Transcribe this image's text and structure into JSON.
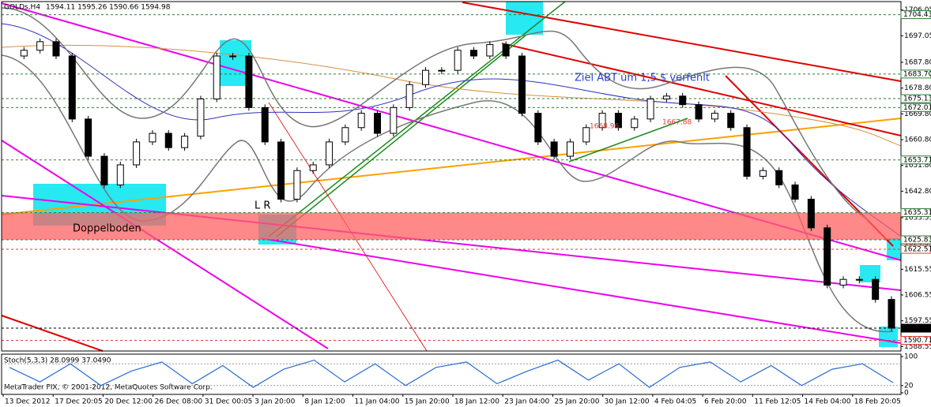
{
  "chart_data": {
    "type": "candlestick",
    "title": "GOLDs,H4",
    "ohlc_text": "1594.11 1595.26 1590.66 1594.98",
    "closes": [
      1690,
      1692,
      1695,
      1690,
      1668,
      1655,
      1645,
      1652,
      1660,
      1663,
      1658,
      1662,
      1675,
      1690,
      1690,
      1672,
      1660,
      1640,
      1650,
      1652,
      1660,
      1665,
      1670,
      1663,
      1672,
      1680,
      1685,
      1685,
      1692,
      1690,
      1694,
      1690,
      1670,
      1660,
      1655,
      1660,
      1665,
      1670,
      1665,
      1668,
      1675,
      1676,
      1673,
      1668,
      1670,
      1665,
      1648,
      1650,
      1645,
      1640,
      1630,
      1610,
      1612,
      1612,
      1605,
      1594.98
    ],
    "ylim": [
      1587,
      1709
    ],
    "yticks": [
      1706.05,
      1697.05,
      {
        "value": 1687.8,
        "label": "1687.80"
      },
      {
        "value": 1678.8,
        "label": "1678.80"
      },
      {
        "value": 1669.8,
        "label": "1669.80"
      },
      {
        "value": 1660.8,
        "label": "1660.80"
      },
      {
        "value": 1651.8,
        "label": "1651.80"
      },
      {
        "value": 1642.8,
        "label": "1642.80"
      },
      1633.55,
      1624.55,
      1615.55,
      1606.55,
      1597.55,
      1588.55
    ],
    "levels": [
      {
        "value": 1704.43,
        "color": "#2e7d32"
      },
      {
        "value": 1683.7,
        "label": "1683.70",
        "color": "#2e7d32"
      },
      {
        "value": 1675.13,
        "color": "#2e7d32"
      },
      {
        "value": 1672.01,
        "color": "#2e7d32"
      },
      {
        "value": 1653.71,
        "color": "#2e7d32"
      },
      {
        "value": 1635.31,
        "color": "#2e7d32"
      },
      {
        "value": 1625.83,
        "color": "#2e7d32"
      },
      {
        "value": 1622.51,
        "color": "#e53935"
      },
      {
        "value": 1594.98,
        "color": "#000000"
      },
      {
        "value": 1590.71,
        "color": "#e53935"
      }
    ],
    "categories": [
      "13 Dec 2012",
      "17 Dec 20:05",
      "20 Dec 12:00",
      "26 Dec 08:00",
      "31 Dec 00:05",
      "3 Jan 20:00",
      "8 Jan 12:00",
      "11 Jan 04:00",
      "15 Jan 20:00",
      "18 Jan 12:00",
      "23 Jan 04:00",
      "25 Jan 20:00",
      "30 Jan 12:00",
      "4 Feb 04:05",
      "6 Feb 20:00",
      "11 Feb 12:05",
      "14 Feb 04:00",
      "18 Feb 20:05"
    ],
    "annotations": [
      "Doppelboden",
      "Ziel ABT um 1,5 $ verfehlt",
      "L R"
    ],
    "price_tags": [
      1668.96,
      1667.88
    ],
    "stoch_title": "Stoch(5,3,3) 28.0999 37.0490",
    "stoch_values": [
      70,
      30,
      80,
      20,
      60,
      85,
      25,
      75,
      15,
      65,
      90,
      30,
      80,
      20,
      70,
      85,
      25,
      60,
      90,
      35,
      80,
      15,
      70,
      85,
      30,
      75,
      20,
      65,
      80,
      28
    ],
    "stoch_ylim": [
      0,
      100
    ],
    "stoch_yticks": [
      100,
      20,
      0
    ],
    "stoch_levels": [
      80,
      20
    ],
    "footer": "MetaTrader FIX, © 2001-2012, MetaQuotes Software Corp."
  }
}
